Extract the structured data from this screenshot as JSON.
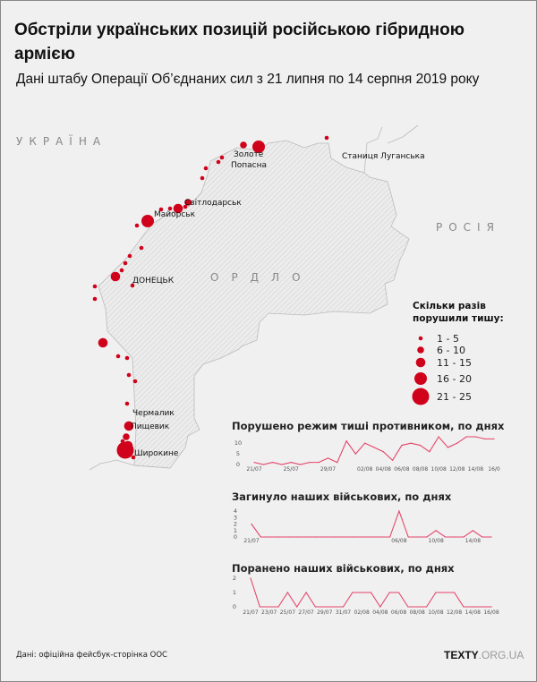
{
  "title": "Обстріли українських позицій російською гібридною армією",
  "subtitle": "Дані штабу Операції Об’єднаних сил з 21 липня по 14 серпня 2019 року",
  "map": {
    "regions": {
      "ukraine": "УКРАЇНА",
      "russia": "РОСІЯ",
      "ordlo": "ОРДЛО"
    },
    "cities": [
      "Золоте",
      "Попасна",
      "Світлодарськ",
      "Майорськ",
      "ДОНЕЦЬК",
      "Чермалик",
      "Пищевик",
      "Широкине",
      "Станиця Луганська"
    ],
    "dot_classes": [
      4,
      2,
      1,
      1,
      1,
      1,
      2,
      1,
      3,
      1,
      1,
      4,
      1,
      1,
      1,
      1,
      1,
      3,
      1,
      1,
      1,
      3,
      1,
      1,
      1,
      1,
      1,
      3,
      2,
      1,
      3,
      5,
      1,
      1
    ],
    "dot_color": "#d0021b"
  },
  "legend": {
    "title_line1": "Скільки разів",
    "title_line2": "порушили тишу:",
    "items": [
      "1 - 5",
      "6 - 10",
      "11 - 15",
      "16 - 20",
      "21 - 25"
    ]
  },
  "chart_data": [
    {
      "type": "line",
      "title": "Порушено режим тиші противником, по днях",
      "x": [
        "21/07",
        "22/07",
        "23/07",
        "24/07",
        "25/07",
        "26/07",
        "27/07",
        "28/07",
        "29/07",
        "30/07",
        "31/07",
        "01/08",
        "02/08",
        "03/08",
        "04/08",
        "05/08",
        "06/08",
        "07/08",
        "08/08",
        "09/08",
        "10/08",
        "11/08",
        "12/08",
        "13/08",
        "14/08",
        "15/08",
        "16/08"
      ],
      "values": [
        1,
        0,
        1,
        0,
        1,
        0,
        1,
        1,
        3,
        1,
        11,
        5,
        10,
        8,
        6,
        2,
        9,
        10,
        9,
        6,
        13,
        8,
        10,
        13,
        13,
        12,
        12
      ],
      "x_tick_labels": [
        "21/07",
        "25/07",
        "29/07",
        "02/08",
        "04/08",
        "06/08",
        "08/08",
        "10/08",
        "12/08",
        "14/08",
        "16/0"
      ],
      "y_ticks": [
        0,
        5,
        10
      ],
      "ylim": [
        0,
        13
      ],
      "color": "#e5456a"
    },
    {
      "type": "line",
      "title": "Загинуло наших військових, по днях",
      "x": [
        "21/07",
        "22/07",
        "23/07",
        "24/07",
        "25/07",
        "26/07",
        "27/07",
        "28/07",
        "29/07",
        "30/07",
        "31/07",
        "01/08",
        "02/08",
        "03/08",
        "04/08",
        "05/08",
        "06/08",
        "07/08",
        "08/08",
        "09/08",
        "10/08",
        "11/08",
        "12/08",
        "13/08",
        "14/08",
        "15/08",
        "16/08"
      ],
      "values": [
        2,
        0,
        0,
        0,
        0,
        0,
        0,
        0,
        0,
        0,
        0,
        0,
        0,
        0,
        0,
        0,
        4,
        0,
        0,
        0,
        1,
        0,
        0,
        0,
        1,
        0,
        0
      ],
      "x_tick_labels": [
        "21/07",
        "06/08",
        "10/08",
        "14/08"
      ],
      "y_ticks": [
        0,
        1,
        2,
        3,
        4
      ],
      "ylim": [
        0,
        4
      ],
      "color": "#e5456a"
    },
    {
      "type": "line",
      "title": "Поранено наших військових, по днях",
      "x": [
        "21/07",
        "22/07",
        "23/07",
        "24/07",
        "25/07",
        "26/07",
        "27/07",
        "28/07",
        "29/07",
        "30/07",
        "31/07",
        "01/08",
        "02/08",
        "03/08",
        "04/08",
        "05/08",
        "06/08",
        "07/08",
        "08/08",
        "09/08",
        "10/08",
        "11/08",
        "12/08",
        "13/08",
        "14/08",
        "15/08",
        "16/08"
      ],
      "values": [
        2,
        0,
        0,
        0,
        1,
        0,
        1,
        0,
        0,
        0,
        0,
        1,
        1,
        1,
        0,
        1,
        1,
        0,
        0,
        0,
        1,
        1,
        1,
        0,
        0,
        0,
        0
      ],
      "x_tick_labels": [
        "21/07",
        "23/07",
        "25/07",
        "27/07",
        "29/07",
        "31/07",
        "02/08",
        "04/08",
        "06/08",
        "08/08",
        "10/08",
        "12/08",
        "14/08",
        "16/08"
      ],
      "y_ticks": [
        0,
        1,
        2
      ],
      "ylim": [
        0,
        2
      ],
      "color": "#e5456a"
    }
  ],
  "footer": {
    "source": "Дані: офіційна фейсбук-сторінка ООС",
    "brand_bold": "TEXTY",
    "brand_rest": ".ORG.UA"
  }
}
